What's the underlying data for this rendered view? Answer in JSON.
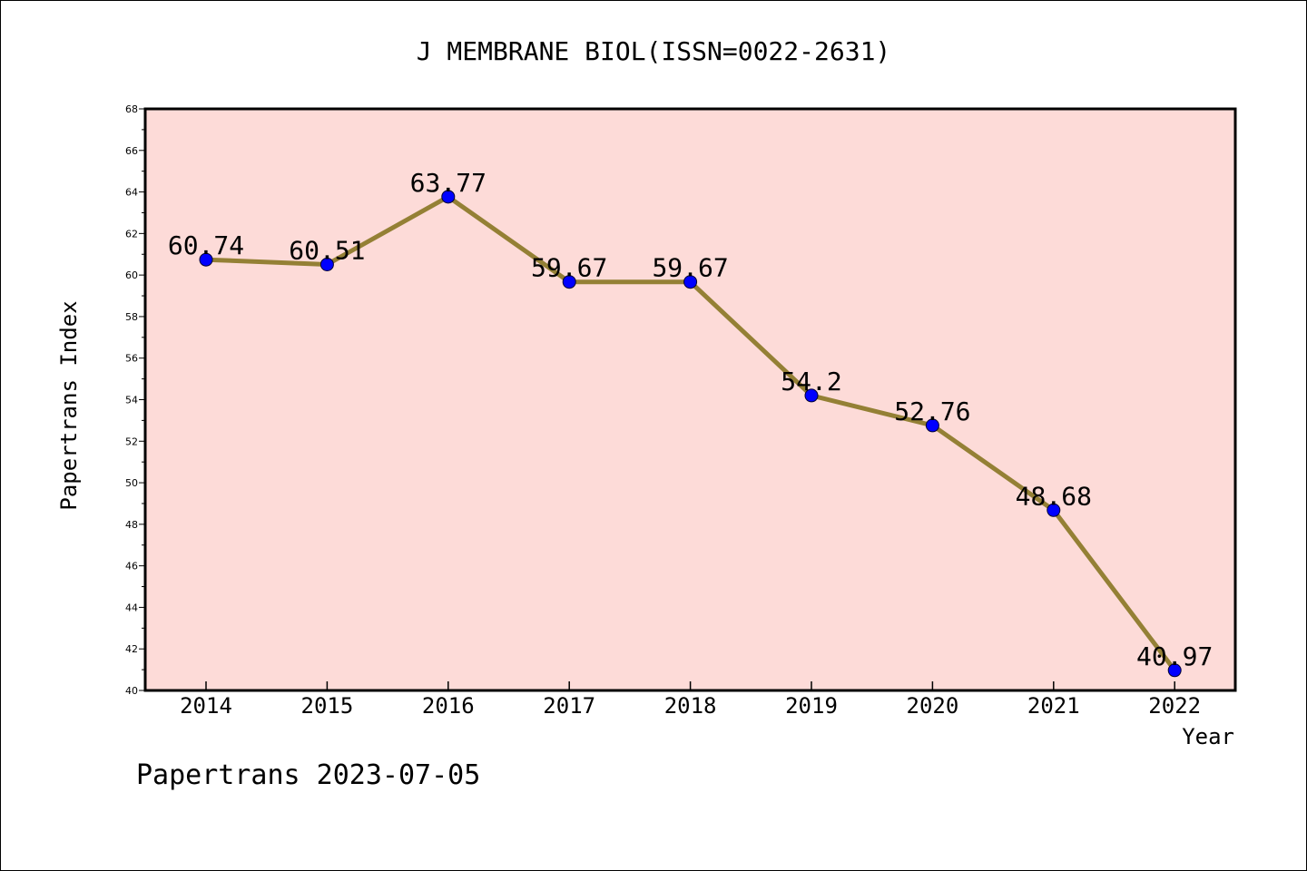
{
  "chart_data": {
    "type": "line",
    "title": "J MEMBRANE BIOL(ISSN=0022-2631)",
    "xlabel": "Year",
    "ylabel": "Papertrans Index",
    "footer": "Papertrans 2023-07-05",
    "x": [
      "2014",
      "2015",
      "2016",
      "2017",
      "2018",
      "2019",
      "2020",
      "2021",
      "2022"
    ],
    "values": [
      60.74,
      60.51,
      63.77,
      59.67,
      59.67,
      54.2,
      52.76,
      48.68,
      40.97
    ],
    "data_labels": [
      "60.74",
      "60.51",
      "63.77",
      "59.67",
      "59.67",
      "54.2",
      "52.76",
      "48.68",
      "40.97"
    ],
    "ylim": [
      40,
      68
    ],
    "yticks": [
      "40",
      "42",
      "44",
      "46",
      "48",
      "50",
      "52",
      "54",
      "56",
      "58",
      "60",
      "62",
      "64",
      "66",
      "68"
    ],
    "grid": false,
    "colors": {
      "plot_background": "#fddbd8",
      "line": "#948035",
      "marker": "#0000ff",
      "axis": "#000000"
    }
  }
}
